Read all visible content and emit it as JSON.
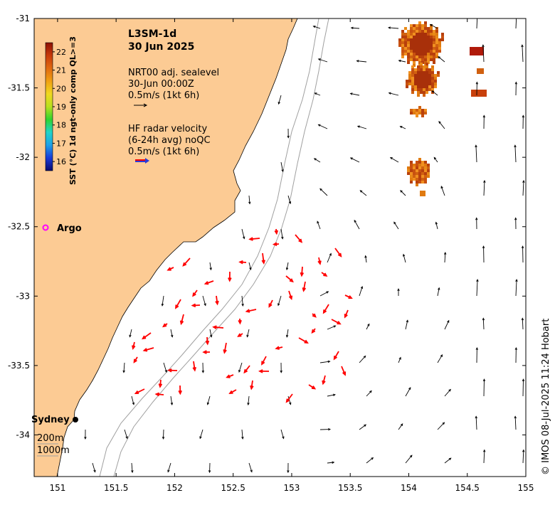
{
  "header": {
    "product": "L3SM-1d",
    "date": "30 Jun 2025"
  },
  "legend": {
    "sealevel_line1": "NRT00 adj. sealevel",
    "sealevel_line2": "30-Jun 00:00Z",
    "sealevel_scale": "0.5m/s (1kt 6h)",
    "radar_line1": "HF radar velocity",
    "radar_line2": "(6-24h avg) noQC",
    "radar_scale": "0.5m/s (1kt 6h)"
  },
  "colorbar": {
    "title": "SST (°C) 1d ngt-only comp QL>=3",
    "ticks": [
      "16",
      "17",
      "18",
      "19",
      "20",
      "21",
      "22"
    ],
    "tick_values": [
      16,
      17,
      18,
      19,
      20,
      21,
      22
    ],
    "range": [
      15.5,
      22.5
    ],
    "colors": [
      "#0a0a6e",
      "#1a3ad8",
      "#1fa0e8",
      "#22d4c8",
      "#2fd42f",
      "#b8e01e",
      "#f0d820",
      "#f0a012",
      "#e06a10",
      "#c83a0a",
      "#8c1006"
    ]
  },
  "axes": {
    "x_ticks": [
      "151",
      "151.5",
      "152",
      "152.5",
      "153",
      "153.5",
      "154",
      "154.5",
      "155"
    ],
    "x_values": [
      151,
      151.5,
      152,
      152.5,
      153,
      153.5,
      154,
      154.5,
      155
    ],
    "y_ticks": [
      "-31",
      "-31.5",
      "-32",
      "-32.5",
      "-33",
      "-33.5",
      "-34"
    ],
    "y_values": [
      -31,
      -31.5,
      -32,
      -32.5,
      -33,
      -33.5,
      -34
    ],
    "lon_range": [
      150.8,
      155.0
    ],
    "lat_range": [
      -34.3,
      -31.0
    ]
  },
  "labels": {
    "argo": "Argo",
    "sydney": "Sydney",
    "depth_200": "200m",
    "depth_1000": "1000m"
  },
  "credit": "© IMOS 08-Jul-2025 11:24 Hobart",
  "colors": {
    "land": "#fccb94",
    "arrow": "#000000",
    "radar_arrow": "#ff0000",
    "argo": "#ff00ff",
    "contour": "#a0a0a0"
  }
}
